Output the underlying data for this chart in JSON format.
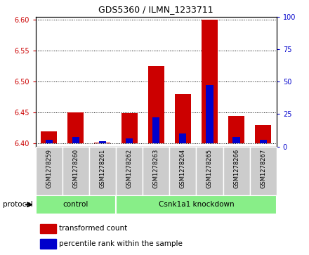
{
  "title": "GDS5360 / ILMN_1233711",
  "samples": [
    "GSM1278259",
    "GSM1278260",
    "GSM1278261",
    "GSM1278262",
    "GSM1278263",
    "GSM1278264",
    "GSM1278265",
    "GSM1278266",
    "GSM1278267"
  ],
  "transformed_counts": [
    6.42,
    6.45,
    6.401,
    6.449,
    6.525,
    6.48,
    6.6,
    6.445,
    6.43
  ],
  "percentile_ranks": [
    3,
    5,
    2,
    4,
    20,
    8,
    45,
    5,
    3
  ],
  "ylim_left": [
    6.395,
    6.605
  ],
  "ylim_right": [
    0,
    100
  ],
  "yticks_left": [
    6.4,
    6.45,
    6.5,
    6.55,
    6.6
  ],
  "yticks_right": [
    0,
    25,
    50,
    75,
    100
  ],
  "bar_base": 6.4,
  "red_color": "#cc0000",
  "blue_color": "#0000cc",
  "control_n": 3,
  "knockdown_n": 6,
  "control_label": "control",
  "knockdown_label": "Csnk1a1 knockdown",
  "protocol_label": "protocol",
  "legend_red": "transformed count",
  "legend_blue": "percentile rank within the sample",
  "group_color": "#88ee88",
  "tick_bg_color": "#cccccc",
  "bar_width": 0.6
}
